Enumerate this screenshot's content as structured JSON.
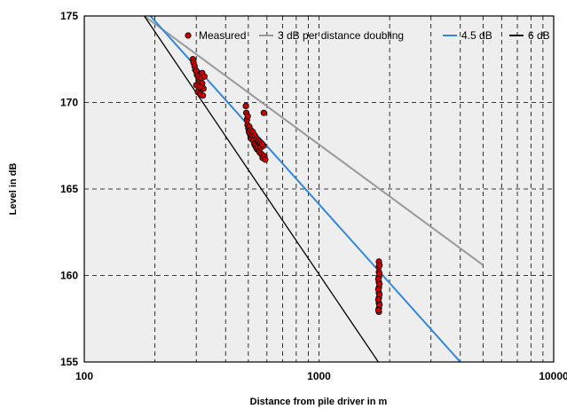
{
  "chart_data": {
    "type": "scatter",
    "xlabel": "Distance from pile driver in m",
    "ylabel": "Level in dB",
    "xscale": "log",
    "xlim": [
      100,
      10000
    ],
    "ylim": [
      155,
      175
    ],
    "x_ticks": [
      100,
      1000,
      10000
    ],
    "x_tick_labels": [
      "100",
      "1000",
      "10000"
    ],
    "y_ticks": [
      155,
      160,
      165,
      170,
      175
    ],
    "y_tick_labels": [
      "155",
      "160",
      "165",
      "170",
      "175"
    ],
    "grid": "dashed",
    "legend": "top-right",
    "plot_background": "#eeeeee",
    "series": [
      {
        "name": "Measured",
        "kind": "scatter",
        "color": "#cc0000",
        "points": [
          [
            290,
            172.5
          ],
          [
            292,
            172.3
          ],
          [
            295,
            172.1
          ],
          [
            297,
            171.9
          ],
          [
            300,
            171.8
          ],
          [
            302,
            171.6
          ],
          [
            305,
            171.5
          ],
          [
            307,
            171.3
          ],
          [
            310,
            171.2
          ],
          [
            312,
            171.0
          ],
          [
            315,
            171.4
          ],
          [
            318,
            171.7
          ],
          [
            300,
            171.0
          ],
          [
            305,
            170.6
          ],
          [
            312,
            170.5
          ],
          [
            320,
            170.4
          ],
          [
            322,
            170.8
          ],
          [
            318,
            171.1
          ],
          [
            325,
            171.5
          ],
          [
            310,
            170.9
          ],
          [
            488,
            169.8
          ],
          [
            490,
            169.4
          ],
          [
            493,
            169.0
          ],
          [
            496,
            168.7
          ],
          [
            500,
            168.5
          ],
          [
            503,
            168.3
          ],
          [
            507,
            168.2
          ],
          [
            511,
            168.0
          ],
          [
            515,
            167.9
          ],
          [
            520,
            168.1
          ],
          [
            525,
            167.8
          ],
          [
            530,
            167.6
          ],
          [
            535,
            167.5
          ],
          [
            540,
            167.4
          ],
          [
            545,
            167.3
          ],
          [
            550,
            167.4
          ],
          [
            555,
            167.2
          ],
          [
            560,
            167.1
          ],
          [
            565,
            167.4
          ],
          [
            570,
            167.0
          ],
          [
            575,
            166.8
          ],
          [
            580,
            167.5
          ],
          [
            585,
            166.9
          ],
          [
            590,
            166.7
          ],
          [
            497,
            169.2
          ],
          [
            505,
            168.6
          ],
          [
            512,
            168.4
          ],
          [
            522,
            168.3
          ],
          [
            532,
            168.1
          ],
          [
            542,
            167.9
          ],
          [
            552,
            167.8
          ],
          [
            562,
            167.7
          ],
          [
            572,
            167.6
          ],
          [
            582,
            169.4
          ],
          [
            1800,
            160.8
          ],
          [
            1800,
            160.5
          ],
          [
            1800,
            160.2
          ],
          [
            1800,
            159.9
          ],
          [
            1800,
            159.6
          ],
          [
            1800,
            159.3
          ],
          [
            1800,
            159.0
          ],
          [
            1800,
            158.7
          ],
          [
            1800,
            158.4
          ],
          [
            1800,
            158.1
          ],
          [
            1800,
            157.9
          ],
          [
            1810,
            160.6
          ],
          [
            1810,
            160.1
          ],
          [
            1810,
            159.5
          ],
          [
            1810,
            158.9
          ],
          [
            1810,
            158.3
          ],
          [
            1790,
            159.8
          ],
          [
            1790,
            159.2
          ],
          [
            1790,
            158.6
          ],
          [
            1790,
            158.0
          ]
        ]
      },
      {
        "name": "3 dB per distance doubling",
        "kind": "line",
        "color": "#999999",
        "points": [
          [
            180,
            175.0
          ],
          [
            5000,
            160.6
          ]
        ]
      },
      {
        "name": "4.5 dB",
        "kind": "line",
        "color": "#3388dd",
        "points": [
          [
            180,
            175.4
          ],
          [
            4000,
            155.0
          ]
        ]
      },
      {
        "name": "6 dB",
        "kind": "line",
        "color": "#000000",
        "points": [
          [
            172,
            175.4
          ],
          [
            1790,
            155.0
          ]
        ]
      }
    ]
  }
}
